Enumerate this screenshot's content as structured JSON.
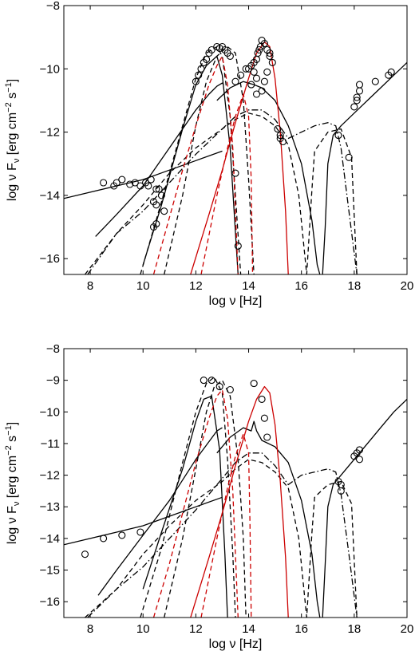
{
  "chart_data": [
    {
      "type": "line",
      "xlabel": "log ν [Hz]",
      "ylabel": {
        "prefix": "log ν F",
        "sub": "ν",
        "units": " [erg cm",
        "exp1": "−2",
        "mid": " s",
        "exp2": "−1",
        "close": "]"
      },
      "xlim": [
        7,
        20
      ],
      "ylim": [
        -16.5,
        -8
      ],
      "xticks": [
        8,
        10,
        12,
        14,
        16,
        18,
        20
      ],
      "yticks": [
        -16,
        -14,
        -12,
        -10,
        -8
      ],
      "grid": false,
      "series": [
        {
          "style": "solid",
          "color": "#000000",
          "x": [
            7,
            8,
            9,
            10,
            11,
            12,
            13
          ],
          "y": [
            -14.1,
            -13.9,
            -13.7,
            -13.5,
            -13.2,
            -12.9,
            -12.6
          ]
        },
        {
          "style": "solid",
          "color": "#000000",
          "x": [
            8.2,
            9,
            10,
            11,
            12,
            12.5,
            12.8,
            13.0,
            13.05
          ],
          "y": [
            -15.3,
            -14.6,
            -13.7,
            -12.5,
            -11.3,
            -10.8,
            -10.55,
            -10.45,
            -10.5
          ]
        },
        {
          "style": "solid",
          "color": "#000000",
          "x": [
            10,
            10.7,
            11.5,
            12,
            12.4,
            12.8,
            13,
            13.3,
            13.6
          ],
          "y": [
            -16.2,
            -14.3,
            -11.9,
            -10.5,
            -9.9,
            -9.6,
            -10.2,
            -12.5,
            -16.5
          ]
        },
        {
          "style": "solid",
          "color": "#000000",
          "x": [
            12.8,
            13.3,
            13.8,
            14.2,
            14.5,
            15,
            15.5,
            16,
            16.4,
            16.6,
            16.7
          ],
          "y": [
            -11.0,
            -10.6,
            -10.4,
            -10.5,
            -10.6,
            -11,
            -11.8,
            -13.0,
            -14.8,
            -16.2,
            -16.5
          ]
        },
        {
          "style": "solid",
          "color": "#000000",
          "x": [
            16.8,
            16.9,
            17.0,
            17.2,
            17.5,
            18,
            18.5,
            19,
            19.5,
            20
          ],
          "y": [
            -16.5,
            -15.0,
            -13.0,
            -12.1,
            -11.8,
            -11.4,
            -11.0,
            -10.6,
            -10.2,
            -9.8
          ]
        },
        {
          "style": "dashed",
          "color": "#000000",
          "x": [
            9.9,
            10.7,
            11.5,
            12,
            12.4,
            12.8,
            13.0,
            13.3,
            13.5,
            13.7
          ],
          "y": [
            -16.5,
            -14.2,
            -11.8,
            -10.3,
            -9.5,
            -9.3,
            -9.6,
            -11.5,
            -14,
            -16.5
          ]
        },
        {
          "style": "dashed",
          "color": "#000000",
          "x": [
            10.8,
            11.5,
            12,
            12.4,
            12.8,
            13.2,
            13.5,
            13.8,
            14.0,
            14.2
          ],
          "y": [
            -16.5,
            -14.0,
            -11.8,
            -10.4,
            -9.6,
            -9.3,
            -9.5,
            -11.0,
            -13.5,
            -16.5
          ]
        },
        {
          "style": "dashed",
          "color": "#000000",
          "x": [
            7.8,
            9,
            10,
            11,
            12,
            13,
            13.5,
            14,
            14.5,
            15,
            15.5,
            15.9,
            16.2,
            16.4,
            16.5,
            17,
            17.5,
            17.9,
            18.1
          ],
          "y": [
            -16.5,
            -15.2,
            -14.3,
            -13.3,
            -12.5,
            -11.9,
            -11.6,
            -11.4,
            -11.5,
            -11.8,
            -12.4,
            -14.0,
            -16.5,
            -13.8,
            -12.6,
            -12.0,
            -11.9,
            -12.8,
            -16.5
          ]
        },
        {
          "style": "dashdot",
          "color": "#000000",
          "x": [
            7.9,
            9,
            10,
            11,
            12,
            12.5,
            13,
            13.5,
            14,
            14.5,
            15,
            15.5,
            16,
            16.5,
            17,
            17.3,
            17.5,
            17.8,
            18.1
          ],
          "y": [
            -16.5,
            -15.2,
            -14.5,
            -13.6,
            -12.7,
            -12.3,
            -11.9,
            -11.5,
            -11.3,
            -11.3,
            -11.6,
            -12.2,
            -12.0,
            -11.8,
            -11.7,
            -11.8,
            -12.5,
            -14.5,
            -16.5
          ]
        },
        {
          "style": "dashed",
          "color": "#cc0000",
          "x": [
            10.4,
            11,
            11.5,
            12,
            12.5,
            12.8,
            13.0,
            13.2,
            13.4,
            13.6
          ],
          "y": [
            -16.5,
            -14.7,
            -13.2,
            -11.8,
            -10.5,
            -9.9,
            -9.6,
            -10.5,
            -12.5,
            -16.5
          ]
        },
        {
          "style": "dashed",
          "color": "#cc0000",
          "x": [
            12.2,
            12.8,
            13.2,
            13.5,
            13.8,
            14.0,
            14.1,
            14.15
          ],
          "y": [
            -16.5,
            -14.0,
            -12.5,
            -11.5,
            -10.8,
            -11.5,
            -13.5,
            -16.5
          ]
        },
        {
          "style": "solid",
          "color": "#cc0000",
          "x": [
            11.8,
            12.5,
            13,
            13.5,
            14,
            14.3,
            14.6,
            14.8,
            15.0,
            15.2,
            15.4,
            15.5
          ],
          "y": [
            -16.5,
            -14.6,
            -13.2,
            -11.7,
            -10.3,
            -9.5,
            -9.15,
            -9.3,
            -10.3,
            -12.0,
            -14.5,
            -16.5
          ]
        }
      ],
      "points": {
        "x": [
          8.5,
          8.9,
          9,
          9.2,
          9.5,
          9.7,
          9.9,
          10.1,
          10.2,
          10.3,
          10.5,
          10.6,
          10.7,
          10.8,
          10.4,
          10.5,
          10.4,
          10.5,
          12,
          12.1,
          12.2,
          12.3,
          12.4,
          12.5,
          12.6,
          12.8,
          12.9,
          13.0,
          13.1,
          13.2,
          13.3,
          13.5,
          13.6,
          13.5,
          13.7,
          13.9,
          14.0,
          14.1,
          14.2,
          14.3,
          14.35,
          14.4,
          14.45,
          14.5,
          14.6,
          14.7,
          14.8,
          14.9,
          14.2,
          14.3,
          14.1,
          14.5,
          14.6,
          14.7,
          14.8,
          14.3,
          15.1,
          15.2,
          15.3,
          15.2,
          17.4,
          17.8,
          18.0,
          18.1,
          18.2,
          18.2,
          18.1,
          18.8,
          19.3,
          19.4
        ],
        "y": [
          -13.6,
          -13.7,
          -13.6,
          -13.5,
          -13.65,
          -13.6,
          -13.7,
          -13.6,
          -13.7,
          -13.5,
          -13.8,
          -13.8,
          -14.0,
          -14.5,
          -14.2,
          -14.9,
          -15.0,
          -14.3,
          -10.4,
          -10.2,
          -10.0,
          -9.8,
          -9.7,
          -9.5,
          -9.4,
          -9.3,
          -9.35,
          -9.3,
          -9.4,
          -9.5,
          -9.6,
          -13.3,
          -15.6,
          -10.4,
          -10.2,
          -10.0,
          -10.0,
          -9.9,
          -9.8,
          -9.7,
          -9.5,
          -9.4,
          -9.3,
          -9.1,
          -9.2,
          -9.4,
          -9.6,
          -9.8,
          -10.1,
          -10.3,
          -10.5,
          -10.7,
          -10.4,
          -10.1,
          -9.5,
          -10.8,
          -11.9,
          -12.1,
          -12.3,
          -12.2,
          -12.1,
          -12.8,
          -11.2,
          -10.9,
          -10.7,
          -10.5,
          -11.0,
          -10.4,
          -10.2,
          -10.1
        ]
      }
    },
    {
      "type": "line",
      "xlabel": "log ν [Hz]",
      "ylabel": {
        "prefix": "log ν F",
        "sub": "ν",
        "units": " [erg cm",
        "exp1": "−2",
        "mid": " s",
        "exp2": "−1",
        "close": "]"
      },
      "xlim": [
        7,
        20
      ],
      "ylim": [
        -16.5,
        -8
      ],
      "xticks": [
        8,
        10,
        12,
        14,
        16,
        18,
        20
      ],
      "yticks": [
        -16,
        -15,
        -14,
        -13,
        -12,
        -11,
        -10,
        -9,
        -8
      ],
      "grid": false,
      "series": [
        {
          "style": "solid",
          "color": "#000000",
          "x": [
            7,
            8,
            9,
            10,
            11,
            12,
            13
          ],
          "y": [
            -14.2,
            -14.0,
            -13.8,
            -13.6,
            -13.3,
            -13.0,
            -12.7
          ]
        },
        {
          "style": "solid",
          "color": "#000000",
          "x": [
            8.3,
            9,
            10,
            11,
            12,
            12.8,
            13.0
          ],
          "y": [
            -15.8,
            -15.0,
            -13.9,
            -12.8,
            -11.5,
            -10.6,
            -10.5
          ]
        },
        {
          "style": "solid",
          "color": "#000000",
          "x": [
            10,
            10.7,
            11.5,
            12,
            12.3,
            12.6,
            12.9,
            13.1,
            13.2
          ],
          "y": [
            -15.6,
            -13.8,
            -11.8,
            -10.3,
            -9.6,
            -9.5,
            -11.2,
            -14.5,
            -16.5
          ]
        },
        {
          "style": "solid",
          "color": "#000000",
          "x": [
            12.8,
            13.3,
            13.8,
            14.1,
            14.2,
            14.3,
            14.5,
            15,
            15.5,
            16,
            16.4,
            16.6,
            16.7
          ],
          "y": [
            -11.3,
            -10.8,
            -10.5,
            -10.6,
            -10.3,
            -10.6,
            -10.9,
            -11.1,
            -11.6,
            -12.8,
            -14.5,
            -16.0,
            -16.5
          ]
        },
        {
          "style": "solid",
          "color": "#000000",
          "x": [
            16.8,
            16.9,
            17.0,
            17.2,
            17.5,
            18,
            18.5,
            19,
            19.5,
            20
          ],
          "y": [
            -16.5,
            -14.8,
            -13.0,
            -12.3,
            -12.0,
            -11.5,
            -11.0,
            -10.5,
            -10.0,
            -9.6
          ]
        },
        {
          "style": "dashed",
          "color": "#000000",
          "x": [
            9.9,
            10.7,
            11.5,
            12,
            12.4,
            12.7,
            13.0,
            13.2,
            13.4,
            13.5
          ],
          "y": [
            -16.5,
            -14.3,
            -11.6,
            -10.0,
            -9.1,
            -8.9,
            -9.4,
            -11.5,
            -14.5,
            -16.5
          ]
        },
        {
          "style": "dashed",
          "color": "#000000",
          "x": [
            10.8,
            11.5,
            12,
            12.4,
            12.7,
            13.0,
            13.3,
            13.6,
            13.8,
            13.9
          ],
          "y": [
            -16.5,
            -14.0,
            -11.8,
            -10.0,
            -9.2,
            -9.0,
            -9.5,
            -11.5,
            -14.0,
            -16.5
          ]
        },
        {
          "style": "dashed",
          "color": "#000000",
          "x": [
            7.8,
            9,
            10,
            11,
            12,
            13,
            13.5,
            14,
            14.5,
            15,
            15.5,
            15.9,
            16.2,
            16.4,
            16.5,
            17,
            17.5,
            17.9,
            18.1
          ],
          "y": [
            -16.5,
            -15.6,
            -14.5,
            -13.6,
            -12.8,
            -12.2,
            -11.8,
            -11.5,
            -11.6,
            -11.9,
            -12.4,
            -14.0,
            -16.5,
            -13.8,
            -12.7,
            -12.3,
            -12.2,
            -12.9,
            -16.5
          ]
        },
        {
          "style": "dashdot",
          "color": "#000000",
          "x": [
            7.9,
            9,
            10,
            11,
            12,
            12.5,
            13,
            13.5,
            14,
            14.5,
            15,
            15.5,
            16,
            16.5,
            17,
            17.3,
            17.5,
            17.8,
            18.1
          ],
          "y": [
            -16.5,
            -15.6,
            -14.9,
            -14.0,
            -13.1,
            -12.6,
            -12.1,
            -11.6,
            -11.3,
            -11.3,
            -11.7,
            -12.3,
            -12.0,
            -11.9,
            -11.8,
            -11.9,
            -12.6,
            -14.5,
            -16.5
          ]
        },
        {
          "style": "dashed",
          "color": "#cc0000",
          "x": [
            10.4,
            11,
            11.5,
            12,
            12.5,
            12.8,
            13.0,
            13.2,
            13.4,
            13.6
          ],
          "y": [
            -16.5,
            -14.8,
            -13.2,
            -11.6,
            -10.2,
            -9.5,
            -9.3,
            -10.2,
            -12.5,
            -16.5
          ]
        },
        {
          "style": "dashed",
          "color": "#cc0000",
          "x": [
            12.2,
            12.8,
            13.2,
            13.5,
            13.8,
            14.0,
            14.05,
            14.1
          ],
          "y": [
            -16.5,
            -14.0,
            -12.4,
            -11.4,
            -10.7,
            -11.3,
            -13.5,
            -16.5
          ]
        },
        {
          "style": "solid",
          "color": "#cc0000",
          "x": [
            11.8,
            12.5,
            13,
            13.5,
            14,
            14.3,
            14.6,
            14.8,
            15.0,
            15.2,
            15.4,
            15.5
          ],
          "y": [
            -16.5,
            -14.6,
            -13.2,
            -11.7,
            -10.3,
            -9.6,
            -9.2,
            -9.4,
            -10.4,
            -12.2,
            -14.6,
            -16.5
          ]
        }
      ],
      "points": {
        "x": [
          7.8,
          8.5,
          9.2,
          9.9,
          12.3,
          12.6,
          12.9,
          13.3,
          14.2,
          14.5,
          14.6,
          14.7,
          17.4,
          17.5,
          17.5,
          18.0,
          18.1,
          18.2,
          18.2
        ],
        "y": [
          -14.5,
          -14.0,
          -13.9,
          -13.8,
          -9.0,
          -9.0,
          -9.2,
          -9.3,
          -9.1,
          -9.6,
          -10.2,
          -10.8,
          -12.2,
          -12.3,
          -12.5,
          -11.4,
          -11.3,
          -11.5,
          -11.2
        ]
      }
    }
  ]
}
